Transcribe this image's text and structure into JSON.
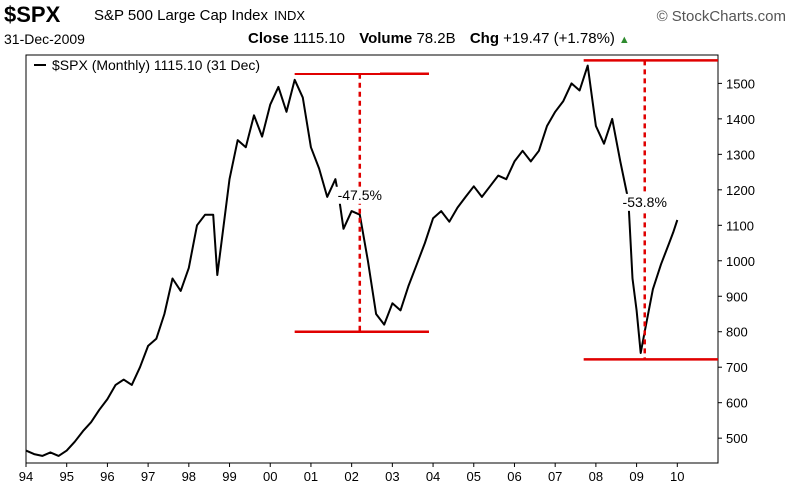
{
  "header": {
    "symbol": "$SPX",
    "name": "S&P 500 Large Cap Index",
    "exchange": "INDX",
    "brand": "© StockCharts.com",
    "date": "31-Dec-2009",
    "close_label": "Close",
    "close_value": "1115.10",
    "volume_label": "Volume",
    "volume_value": "78.2B",
    "chg_label": "Chg",
    "chg_value": "+19.47 (+1.78%)",
    "up_icon": "triangle-up-icon"
  },
  "chart_data": {
    "type": "line",
    "legend": "$SPX (Monthly) 1115.10 (31 Dec)",
    "legend_position": "top-left",
    "x_ticks": [
      "94",
      "95",
      "96",
      "97",
      "98",
      "99",
      "00",
      "01",
      "02",
      "03",
      "04",
      "05",
      "06",
      "07",
      "08",
      "09",
      "10"
    ],
    "y_ticks": [
      500,
      600,
      700,
      800,
      900,
      1000,
      1100,
      1200,
      1300,
      1400,
      1500
    ],
    "xlim": [
      1994.0,
      2011.0
    ],
    "ylim": [
      430,
      1580
    ],
    "y_axis_side": "right",
    "grid": false,
    "series": [
      {
        "color": "#000000",
        "points": [
          [
            1994.0,
            465
          ],
          [
            1994.2,
            455
          ],
          [
            1994.4,
            450
          ],
          [
            1994.6,
            460
          ],
          [
            1994.8,
            450
          ],
          [
            1995.0,
            465
          ],
          [
            1995.2,
            490
          ],
          [
            1995.4,
            520
          ],
          [
            1995.6,
            545
          ],
          [
            1995.8,
            580
          ],
          [
            1996.0,
            610
          ],
          [
            1996.2,
            650
          ],
          [
            1996.4,
            665
          ],
          [
            1996.6,
            650
          ],
          [
            1996.8,
            700
          ],
          [
            1997.0,
            760
          ],
          [
            1997.2,
            780
          ],
          [
            1997.4,
            850
          ],
          [
            1997.6,
            950
          ],
          [
            1997.8,
            915
          ],
          [
            1998.0,
            980
          ],
          [
            1998.2,
            1100
          ],
          [
            1998.4,
            1130
          ],
          [
            1998.6,
            1130
          ],
          [
            1998.7,
            960
          ],
          [
            1998.8,
            1050
          ],
          [
            1999.0,
            1230
          ],
          [
            1999.2,
            1340
          ],
          [
            1999.4,
            1320
          ],
          [
            1999.6,
            1410
          ],
          [
            1999.8,
            1350
          ],
          [
            2000.0,
            1440
          ],
          [
            2000.2,
            1490
          ],
          [
            2000.4,
            1420
          ],
          [
            2000.6,
            1510
          ],
          [
            2000.8,
            1460
          ],
          [
            2001.0,
            1320
          ],
          [
            2001.2,
            1260
          ],
          [
            2001.4,
            1180
          ],
          [
            2001.6,
            1230
          ],
          [
            2001.7,
            1170
          ],
          [
            2001.8,
            1090
          ],
          [
            2002.0,
            1140
          ],
          [
            2002.2,
            1130
          ],
          [
            2002.4,
            1000
          ],
          [
            2002.6,
            850
          ],
          [
            2002.8,
            820
          ],
          [
            2003.0,
            880
          ],
          [
            2003.2,
            860
          ],
          [
            2003.4,
            930
          ],
          [
            2003.6,
            990
          ],
          [
            2003.8,
            1050
          ],
          [
            2004.0,
            1120
          ],
          [
            2004.2,
            1140
          ],
          [
            2004.4,
            1110
          ],
          [
            2004.6,
            1150
          ],
          [
            2004.8,
            1180
          ],
          [
            2005.0,
            1210
          ],
          [
            2005.2,
            1180
          ],
          [
            2005.4,
            1210
          ],
          [
            2005.6,
            1240
          ],
          [
            2005.8,
            1230
          ],
          [
            2006.0,
            1280
          ],
          [
            2006.2,
            1310
          ],
          [
            2006.4,
            1280
          ],
          [
            2006.6,
            1310
          ],
          [
            2006.8,
            1380
          ],
          [
            2007.0,
            1420
          ],
          [
            2007.2,
            1450
          ],
          [
            2007.4,
            1500
          ],
          [
            2007.6,
            1480
          ],
          [
            2007.8,
            1550
          ],
          [
            2008.0,
            1380
          ],
          [
            2008.2,
            1330
          ],
          [
            2008.4,
            1400
          ],
          [
            2008.6,
            1280
          ],
          [
            2008.8,
            1170
          ],
          [
            2008.9,
            950
          ],
          [
            2009.0,
            860
          ],
          [
            2009.1,
            740
          ],
          [
            2009.2,
            800
          ],
          [
            2009.4,
            920
          ],
          [
            2009.6,
            990
          ],
          [
            2009.8,
            1050
          ],
          [
            2009.9,
            1080
          ],
          [
            2010.0,
            1115
          ]
        ]
      }
    ],
    "annotations": [
      {
        "label": "-47.5%",
        "high": 1527,
        "low": 800,
        "line_x_range": [
          2000.6,
          2003.9
        ],
        "drop_x": 2002.2
      },
      {
        "label": "-53.8%",
        "high": 1565,
        "low": 722,
        "line_x_range": [
          2007.7,
          2011.0
        ],
        "drop_x": 2009.2
      }
    ]
  }
}
